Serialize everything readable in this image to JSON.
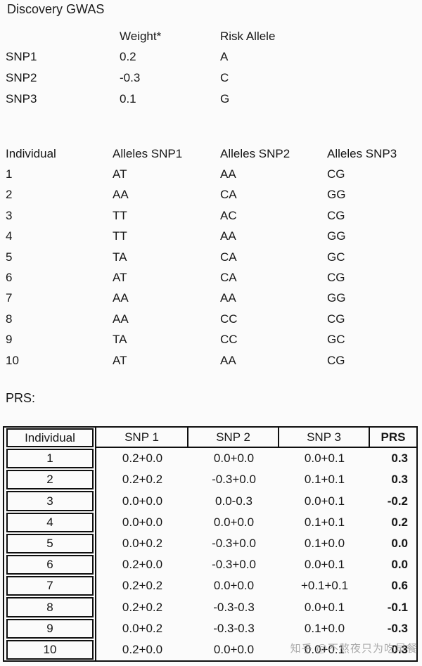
{
  "page": {
    "background": "#fbfbfb",
    "text_color": "#161616",
    "border_color": "#0f0f0f",
    "watermark": {
      "text": "知乎 @不熬夜只为吃早餐",
      "color": "#9b9b9b"
    }
  },
  "discovery": {
    "title": "Discovery GWAS",
    "columns": {
      "weight": "Weight*",
      "risk_allele": "Risk Allele"
    },
    "snps": [
      {
        "name": "SNP1",
        "weight": "0.2",
        "risk_allele": "A"
      },
      {
        "name": "SNP2",
        "weight": "-0.3",
        "risk_allele": "C"
      },
      {
        "name": "SNP3",
        "weight": "0.1",
        "risk_allele": "G"
      }
    ]
  },
  "individuals": {
    "columns": [
      "Individual",
      "Alleles SNP1",
      "Alleles SNP2",
      "Alleles SNP3"
    ],
    "rows": [
      {
        "id": "1",
        "snp1": "AT",
        "snp2": "AA",
        "snp3": "CG"
      },
      {
        "id": "2",
        "snp1": "AA",
        "snp2": "CA",
        "snp3": "GG"
      },
      {
        "id": "3",
        "snp1": "TT",
        "snp2": "AC",
        "snp3": "CG"
      },
      {
        "id": "4",
        "snp1": "TT",
        "snp2": "AA",
        "snp3": "GG"
      },
      {
        "id": "5",
        "snp1": "TA",
        "snp2": "CA",
        "snp3": "GC"
      },
      {
        "id": "6",
        "snp1": "AT",
        "snp2": "CA",
        "snp3": "CG"
      },
      {
        "id": "7",
        "snp1": "AA",
        "snp2": "AA",
        "snp3": "GG"
      },
      {
        "id": "8",
        "snp1": "AA",
        "snp2": "CC",
        "snp3": "CG"
      },
      {
        "id": "9",
        "snp1": "TA",
        "snp2": "CC",
        "snp3": "GC"
      },
      {
        "id": "10",
        "snp1": "AT",
        "snp2": "AA",
        "snp3": "CG"
      }
    ]
  },
  "prs": {
    "label": "PRS:",
    "columns": [
      "Individual",
      "SNP 1",
      "SNP 2",
      "SNP 3",
      "PRS"
    ],
    "rows": [
      {
        "id": "1",
        "snp1": "0.2+0.0",
        "snp2": "0.0+0.0",
        "snp3": "0.0+0.1",
        "prs": "0.3"
      },
      {
        "id": "2",
        "snp1": "0.2+0.2",
        "snp2": "-0.3+0.0",
        "snp3": "0.1+0.1",
        "prs": "0.3"
      },
      {
        "id": "3",
        "snp1": "0.0+0.0",
        "snp2": "0.0-0.3",
        "snp3": "0.0+0.1",
        "prs": "-0.2"
      },
      {
        "id": "4",
        "snp1": "0.0+0.0",
        "snp2": "0.0+0.0",
        "snp3": "0.1+0.1",
        "prs": "0.2"
      },
      {
        "id": "5",
        "snp1": "0.0+0.2",
        "snp2": "-0.3+0.0",
        "snp3": "0.1+0.0",
        "prs": "0.0"
      },
      {
        "id": "6",
        "snp1": "0.2+0.0",
        "snp2": "-0.3+0.0",
        "snp3": "0.0+0.1",
        "prs": "0.0"
      },
      {
        "id": "7",
        "snp1": "0.2+0.2",
        "snp2": "0.0+0.0",
        "snp3": "+0.1+0.1",
        "prs": "0.6"
      },
      {
        "id": "8",
        "snp1": "0.2+0.2",
        "snp2": "-0.3-0.3",
        "snp3": "0.0+0.1",
        "prs": "-0.1"
      },
      {
        "id": "9",
        "snp1": "0.0+0.2",
        "snp2": "-0.3-0.3",
        "snp3": "0.1+0.0",
        "prs": "-0.3"
      },
      {
        "id": "10",
        "snp1": "0.2+0.0",
        "snp2": "0.0+0.0",
        "snp3": "0.0+0.1",
        "prs": "0.3"
      }
    ]
  }
}
